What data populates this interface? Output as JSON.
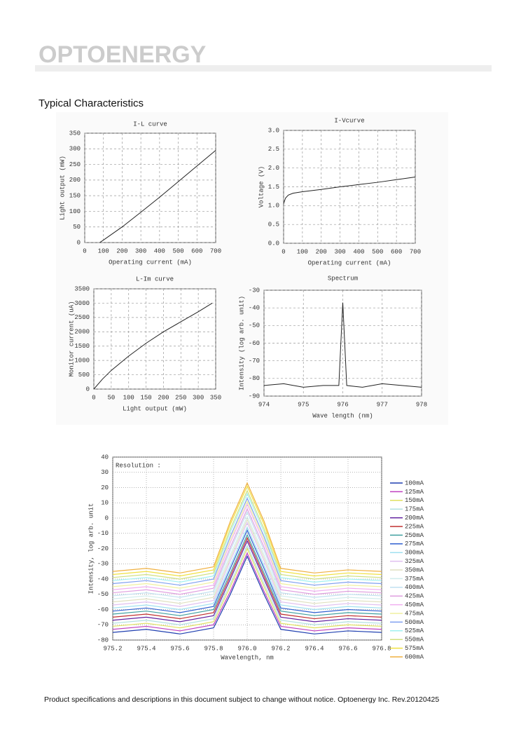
{
  "logo": "OPTOENERGY",
  "section_title": "Typical Characteristics",
  "footer": "Product specifications and descriptions in this document subject to change without notice. Optoenergy Inc. Rev.20120425",
  "chart_data": [
    {
      "type": "line",
      "title": "I-L curve",
      "xlabel": "Operating current (mA)",
      "ylabel": "Light output (mW)",
      "x": [
        80,
        100,
        200,
        300,
        400,
        500,
        600,
        700
      ],
      "values": [
        0,
        8,
        50,
        97,
        145,
        195,
        245,
        295
      ],
      "color": "#222222",
      "xlim": [
        0,
        700
      ],
      "ylim": [
        0,
        350
      ],
      "xticks": [
        0,
        100,
        200,
        300,
        400,
        500,
        600,
        700
      ],
      "yticks": [
        0,
        50,
        100,
        150,
        200,
        250,
        300,
        350
      ],
      "grid": true
    },
    {
      "type": "line",
      "title": "I-Vcurve",
      "xlabel": "Operating current (mA)",
      "ylabel": "Voltage (V)",
      "x": [
        0,
        10,
        25,
        50,
        100,
        200,
        300,
        400,
        500,
        600,
        700
      ],
      "values": [
        1.05,
        1.2,
        1.28,
        1.33,
        1.37,
        1.43,
        1.5,
        1.56,
        1.62,
        1.69,
        1.76
      ],
      "color": "#222222",
      "xlim": [
        0,
        700
      ],
      "ylim": [
        0,
        3
      ],
      "xticks": [
        0,
        100,
        200,
        300,
        400,
        500,
        600,
        700
      ],
      "yticks": [
        {
          "value": 0,
          "label": "0.0"
        },
        0.5,
        {
          "value": 1,
          "label": "1.0"
        },
        1.5,
        {
          "value": 2,
          "label": "2.0"
        },
        2.5,
        {
          "value": 3,
          "label": "3.0"
        }
      ],
      "grid": true
    },
    {
      "type": "line",
      "title": "L-Im curve",
      "xlabel": "Light output (mW)",
      "ylabel": "Monitor current (uA)",
      "x": [
        0,
        25,
        50,
        100,
        150,
        200,
        250,
        300,
        340
      ],
      "values": [
        0,
        350,
        650,
        1150,
        1600,
        2000,
        2350,
        2700,
        3000
      ],
      "color": "#222222",
      "xlim": [
        0,
        350
      ],
      "ylim": [
        0,
        3500
      ],
      "xticks": [
        0,
        50,
        100,
        150,
        200,
        250,
        300,
        350
      ],
      "yticks": [
        0,
        500,
        1000,
        1500,
        2000,
        2500,
        3000,
        3500
      ],
      "grid": true
    },
    {
      "type": "line",
      "title": "Spectrum",
      "xlabel": "Wave length (nm)",
      "ylabel": "Intensity (log arb. unit)",
      "x": [
        974,
        974.5,
        975,
        975.5,
        975.9,
        976,
        976.1,
        976.5,
        977,
        977.5,
        978
      ],
      "values": [
        -84,
        -83,
        -85,
        -84,
        -84,
        -37,
        -84,
        -85,
        -83,
        -84,
        -85
      ],
      "color": "#222222",
      "xlim": [
        974,
        978
      ],
      "ylim": [
        -90,
        -30
      ],
      "xticks": [
        974,
        975,
        976,
        977,
        978
      ],
      "yticks": [
        -90,
        -80,
        -70,
        -60,
        -50,
        -40,
        -30
      ],
      "grid": true
    },
    {
      "type": "multiline",
      "annotation": "Resolution :",
      "xlabel": "Wavelength, nm",
      "ylabel": "Intensity, log arb. unit",
      "x": [
        975.2,
        975.4,
        975.6,
        975.8,
        975.9,
        976,
        976.1,
        976.2,
        976.4,
        976.6,
        976.8
      ],
      "xlim": [
        975.2,
        976.8
      ],
      "ylim": [
        -80,
        40
      ],
      "xticks": [
        975.2,
        975.4,
        975.6,
        975.8,
        {
          "value": 976,
          "label": "976.0"
        },
        976.2,
        976.4,
        976.6,
        976.8
      ],
      "yticks": [
        -80,
        -70,
        -60,
        -50,
        -40,
        -30,
        -20,
        -10,
        0,
        10,
        20,
        30,
        40
      ],
      "grid": true,
      "series": [
        {
          "name": "100mA",
          "color": "#1f3fb0",
          "values": [
            -75,
            -73,
            -76,
            -72,
            -50,
            -25,
            -50,
            -73,
            -76,
            -74,
            -75
          ]
        },
        {
          "name": "125mA",
          "color": "#c040c0",
          "values": [
            -73,
            -71,
            -74,
            -70,
            -48,
            -23,
            -48,
            -71,
            -74,
            -72,
            -73
          ]
        },
        {
          "name": "150mA",
          "color": "#e0e060",
          "values": [
            -71,
            -69,
            -72,
            -68,
            -45,
            -20,
            -45,
            -69,
            -72,
            -70,
            -71
          ]
        },
        {
          "name": "175mA",
          "color": "#b0e0e0",
          "values": [
            -69,
            -67,
            -70,
            -66,
            -43,
            -18,
            -43,
            -67,
            -70,
            -68,
            -69
          ]
        },
        {
          "name": "200mA",
          "color": "#6020a0",
          "values": [
            -67,
            -65,
            -68,
            -64,
            -40,
            -15,
            -40,
            -65,
            -68,
            -66,
            -67
          ]
        },
        {
          "name": "225mA",
          "color": "#c03030",
          "values": [
            -65,
            -63,
            -66,
            -62,
            -38,
            -13,
            -38,
            -63,
            -66,
            -64,
            -65
          ]
        },
        {
          "name": "250mA",
          "color": "#40a0a0",
          "values": [
            -63,
            -61,
            -64,
            -60,
            -36,
            -11,
            -36,
            -61,
            -64,
            -62,
            -63
          ]
        },
        {
          "name": "275mA",
          "color": "#3060d0",
          "values": [
            -61,
            -59,
            -62,
            -58,
            -33,
            -8,
            -33,
            -59,
            -62,
            -60,
            -61
          ]
        },
        {
          "name": "300mA",
          "color": "#a0e0f0",
          "values": [
            -59,
            -57,
            -60,
            -56,
            -31,
            -6,
            -31,
            -57,
            -60,
            -58,
            -59
          ]
        },
        {
          "name": "325mA",
          "color": "#e0c0f0",
          "values": [
            -57,
            -55,
            -58,
            -54,
            -28,
            -3,
            -28,
            -55,
            -58,
            -56,
            -57
          ]
        },
        {
          "name": "350mA",
          "color": "#e0e0c0",
          "values": [
            -55,
            -53,
            -56,
            -52,
            -26,
            -1,
            -26,
            -53,
            -56,
            -54,
            -55
          ]
        },
        {
          "name": "375mA",
          "color": "#d0ecec",
          "values": [
            -53,
            -51,
            -54,
            -50,
            -24,
            1,
            -24,
            -51,
            -54,
            -52,
            -53
          ]
        },
        {
          "name": "400mA",
          "color": "#c0e0f0",
          "values": [
            -51,
            -49,
            -52,
            -48,
            -21,
            4,
            -21,
            -49,
            -52,
            -50,
            -51
          ]
        },
        {
          "name": "425mA",
          "color": "#e0a0e0",
          "values": [
            -49,
            -47,
            -50,
            -46,
            -19,
            6,
            -19,
            -47,
            -50,
            -48,
            -49
          ]
        },
        {
          "name": "450mA",
          "color": "#f0b0f0",
          "values": [
            -47,
            -45,
            -48,
            -44,
            -16,
            9,
            -16,
            -45,
            -48,
            -46,
            -47
          ]
        },
        {
          "name": "475mA",
          "color": "#f0f0a0",
          "values": [
            -45,
            -43,
            -46,
            -42,
            -14,
            11,
            -14,
            -43,
            -46,
            -44,
            -45
          ]
        },
        {
          "name": "500mA",
          "color": "#80a0f0",
          "values": [
            -43,
            -41,
            -44,
            -40,
            -12,
            13,
            -12,
            -41,
            -44,
            -42,
            -43
          ]
        },
        {
          "name": "525mA",
          "color": "#a0f0f0",
          "values": [
            -41,
            -39,
            -42,
            -38,
            -9,
            16,
            -9,
            -39,
            -42,
            -40,
            -41
          ]
        },
        {
          "name": "550mA",
          "color": "#d0e080",
          "values": [
            -39,
            -37,
            -40,
            -36,
            -7,
            18,
            -7,
            -37,
            -40,
            -38,
            -39
          ]
        },
        {
          "name": "575mA",
          "color": "#f0e040",
          "values": [
            -37,
            -35,
            -38,
            -34,
            -4,
            21,
            -4,
            -35,
            -38,
            -36,
            -37
          ]
        },
        {
          "name": "600mA",
          "color": "#f0b040",
          "values": [
            -35,
            -33,
            -36,
            -32,
            -2,
            23,
            -2,
            -33,
            -36,
            -34,
            -35
          ]
        }
      ]
    }
  ]
}
